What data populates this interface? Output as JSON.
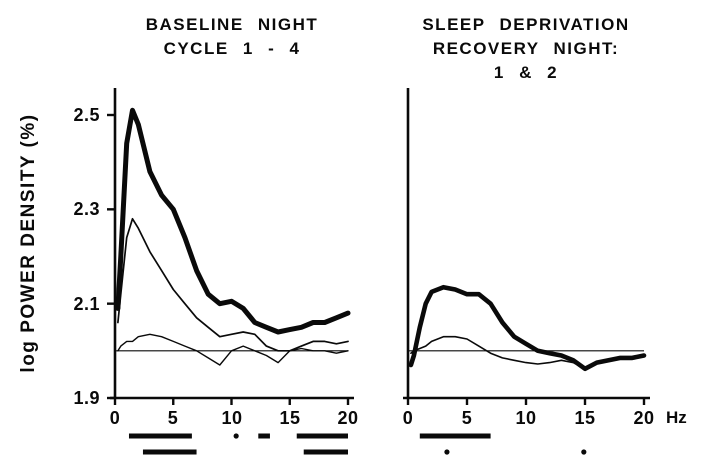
{
  "figure": {
    "y_axis_label": "log POWER DENSITY (%)",
    "hz_label": "Hz"
  },
  "chart_data": {
    "type": "line",
    "panels": [
      {
        "title_lines": [
          "BASELINE NIGHT",
          "CYCLE 1 - 4"
        ],
        "xlim": [
          0,
          20
        ],
        "ylim": [
          1.9,
          2.55
        ],
        "xticks": [
          0,
          5,
          10,
          15,
          20
        ],
        "yticks": [
          2.5,
          2.3,
          2.1,
          1.9
        ],
        "x": [
          0.25,
          0.5,
          1,
          1.5,
          2,
          3,
          4,
          5,
          6,
          7,
          8,
          9,
          10,
          11,
          12,
          13,
          14,
          15,
          16,
          17,
          18,
          19,
          20
        ],
        "series": [
          {
            "name": "thick-curve",
            "stroke_width": 5,
            "values": [
              2.09,
              2.2,
              2.44,
              2.51,
              2.48,
              2.38,
              2.33,
              2.3,
              2.24,
              2.17,
              2.12,
              2.1,
              2.105,
              2.09,
              2.06,
              2.05,
              2.04,
              2.045,
              2.05,
              2.06,
              2.06,
              2.07,
              2.08
            ]
          },
          {
            "name": "thin-upper-curve",
            "stroke_width": 1.7,
            "values": [
              2.06,
              2.12,
              2.24,
              2.28,
              2.26,
              2.21,
              2.17,
              2.13,
              2.1,
              2.07,
              2.05,
              2.03,
              2.035,
              2.04,
              2.035,
              2.01,
              2.0,
              2.0,
              2.01,
              2.02,
              2.02,
              2.015,
              2.02
            ]
          },
          {
            "name": "thin-lower-curve",
            "stroke_width": 1.4,
            "values": [
              2.0,
              2.01,
              2.02,
              2.02,
              2.03,
              2.035,
              2.03,
              2.02,
              2.01,
              2.0,
              1.985,
              1.97,
              2.0,
              2.01,
              2.0,
              1.99,
              1.975,
              2.0,
              2.005,
              2.0,
              2.0,
              1.995,
              2.0
            ]
          }
        ],
        "reference_value": 2.0,
        "significance_markers": [
          {
            "segments_hz": [
              [
                1.2,
                6.6
              ],
              [
                12.3,
                13.3
              ],
              [
                15.6,
                20.0
              ]
            ],
            "dots_hz": [
              10.4
            ]
          },
          {
            "segments_hz": [
              [
                2.4,
                7.0
              ],
              [
                16.2,
                20.0
              ]
            ],
            "dots_hz": []
          }
        ]
      },
      {
        "title_lines": [
          "SLEEP DEPRIVATION",
          "RECOVERY NIGHT:",
          "1 & 2"
        ],
        "xlim": [
          0,
          20
        ],
        "ylim": [
          1.9,
          2.55
        ],
        "xticks": [
          0,
          5,
          10,
          15,
          20
        ],
        "yticks": [],
        "x": [
          0.25,
          0.5,
          1,
          1.5,
          2,
          3,
          4,
          5,
          6,
          7,
          8,
          9,
          10,
          11,
          12,
          13,
          14,
          15,
          16,
          17,
          18,
          19,
          20
        ],
        "series": [
          {
            "name": "thick-curve",
            "stroke_width": 4.6,
            "values": [
              1.97,
              1.99,
              2.05,
              2.1,
              2.125,
              2.135,
              2.13,
              2.12,
              2.12,
              2.1,
              2.06,
              2.03,
              2.015,
              2.0,
              1.995,
              1.99,
              1.98,
              1.962,
              1.975,
              1.98,
              1.985,
              1.985,
              1.99
            ]
          },
          {
            "name": "thin-curve",
            "stroke_width": 1.6,
            "values": [
              1.995,
              2.0,
              2.005,
              2.01,
              2.02,
              2.03,
              2.03,
              2.025,
              2.01,
              1.995,
              1.985,
              1.98,
              1.975,
              1.972,
              1.975,
              1.98,
              1.975,
              1.962,
              1.973,
              1.978,
              1.983,
              1.983,
              1.988
            ]
          }
        ],
        "reference_value": 2.0,
        "significance_markers": [
          {
            "segments_hz": [
              [
                1.0,
                7.0
              ]
            ],
            "dots_hz": []
          },
          {
            "segments_hz": [],
            "dots_hz": [
              3.3,
              14.9
            ]
          }
        ]
      }
    ]
  }
}
